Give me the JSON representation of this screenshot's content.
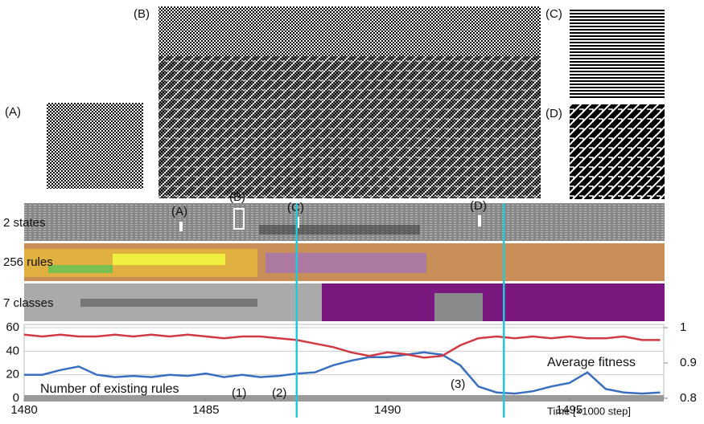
{
  "panels": [
    "(A)",
    "(B)",
    "(C)",
    "(D)"
  ],
  "rows": [
    "2 states",
    "256 rules",
    "7 classes"
  ],
  "strip_markers": [
    "(A)",
    "(B)",
    "(C)",
    "(D)"
  ],
  "chart_data": {
    "type": "line",
    "x_label": "Time [×1000 step]",
    "x": [
      1480,
      1480.5,
      1481,
      1481.5,
      1482,
      1482.5,
      1483,
      1483.5,
      1484,
      1484.5,
      1485,
      1485.5,
      1486,
      1486.5,
      1487,
      1487.5,
      1488,
      1488.5,
      1489,
      1489.5,
      1490,
      1490.5,
      1491,
      1491.5,
      1492,
      1492.5,
      1493,
      1493.5,
      1494,
      1494.5,
      1495,
      1495.5,
      1496,
      1496.5,
      1497,
      1497.5
    ],
    "series": [
      {
        "name": "Number of existing rules",
        "color": "#3a6fc0",
        "values": [
          20,
          20,
          24,
          27,
          20,
          18,
          19,
          18,
          20,
          19,
          21,
          18,
          20,
          18,
          19,
          21,
          22,
          28,
          32,
          35,
          35,
          37,
          39,
          37,
          28,
          10,
          5,
          4,
          6,
          10,
          13,
          22,
          8,
          5,
          4,
          5
        ]
      },
      {
        "name": "Average fitness",
        "color": "#d03a44",
        "axis": "y2",
        "values": [
          0.98,
          0.975,
          0.98,
          0.975,
          0.975,
          0.98,
          0.975,
          0.98,
          0.975,
          0.98,
          0.975,
          0.97,
          0.975,
          0.975,
          0.97,
          0.965,
          0.955,
          0.945,
          0.93,
          0.92,
          0.93,
          0.925,
          0.915,
          0.92,
          0.95,
          0.97,
          0.975,
          0.97,
          0.975,
          0.97,
          0.975,
          0.97,
          0.97,
          0.975,
          0.965,
          0.965
        ]
      }
    ],
    "xlim": [
      1480,
      1497.6
    ],
    "xticks": [
      1480,
      1485,
      1490,
      1495
    ],
    "ylim": [
      0,
      60
    ],
    "yticks": [
      0,
      20,
      40,
      60
    ],
    "y2lim": [
      0.8,
      1
    ],
    "y2ticks": [
      0.8,
      0.9,
      1
    ],
    "grid": true,
    "markers": [
      1487.5,
      1493.2
    ],
    "marker_color": "#22c8dc",
    "annotations": [
      "(1)",
      "(2)",
      "(3)"
    ]
  }
}
